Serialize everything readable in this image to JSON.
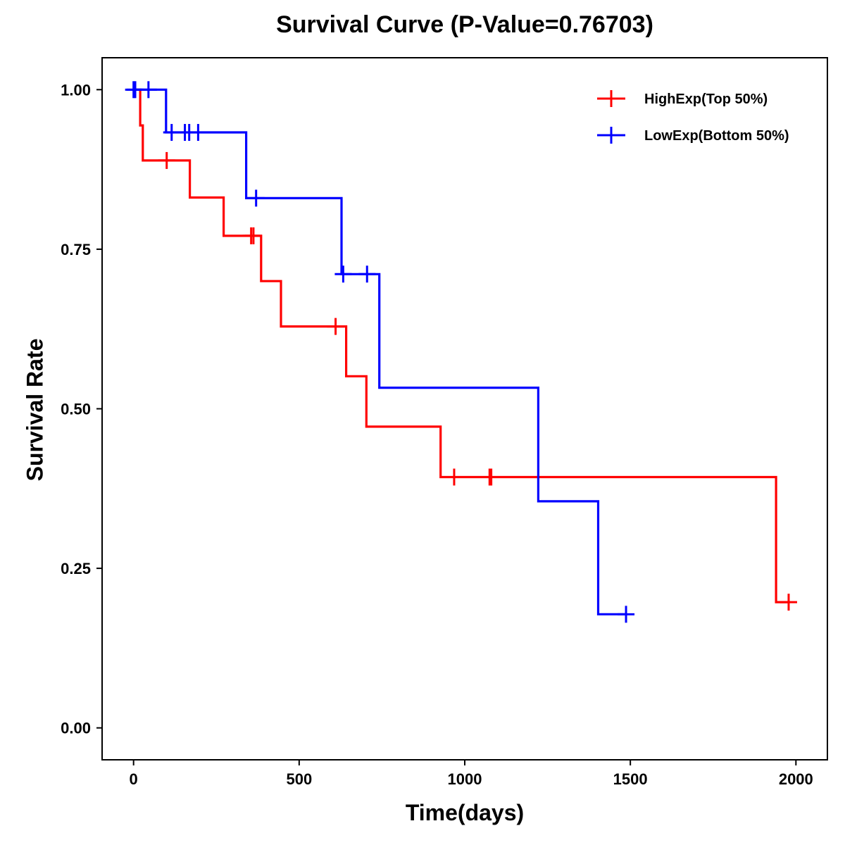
{
  "colors": {
    "high": "#ff0000",
    "low": "#0000ff",
    "axis": "#000000"
  },
  "chart_data": {
    "type": "line",
    "subtype": "kaplan-meier-step",
    "title": "Survival Curve (P-Value=0.76703)",
    "xlabel": "Time(days)",
    "ylabel": "Survival Rate",
    "xlim": [
      -95,
      2095
    ],
    "ylim": [
      -0.05,
      1.05
    ],
    "xticks": [
      0,
      500,
      1000,
      1500,
      2000
    ],
    "xtick_labels": [
      "0",
      "500",
      "1000",
      "1500",
      "2000"
    ],
    "yticks": [
      0,
      0.25,
      0.5,
      0.75,
      1.0
    ],
    "ytick_labels": [
      "0.00",
      "0.25",
      "0.50",
      "0.75",
      "1.00"
    ],
    "grid": false,
    "legend_position": "top-right",
    "series": [
      {
        "name": "HighExp(Top 50%)",
        "color": "#ff0000",
        "steps": [
          [
            0,
            1.0
          ],
          [
            20,
            0.944
          ],
          [
            28,
            0.889
          ],
          [
            170,
            0.831
          ],
          [
            272,
            0.771
          ],
          [
            385,
            0.7
          ],
          [
            445,
            0.629
          ],
          [
            642,
            0.551
          ],
          [
            703,
            0.472
          ],
          [
            927,
            0.393
          ],
          [
            1940,
            0.197
          ],
          [
            1980,
            0.197
          ]
        ],
        "censored": [
          [
            100,
            0.889
          ],
          [
            355,
            0.771
          ],
          [
            362,
            0.771
          ],
          [
            610,
            0.629
          ],
          [
            968,
            0.393
          ],
          [
            1075,
            0.393
          ],
          [
            1080,
            0.393
          ],
          [
            1978,
            0.197
          ]
        ]
      },
      {
        "name": "LowExp(Bottom 50%)",
        "color": "#0000ff",
        "steps": [
          [
            0,
            1.0
          ],
          [
            98,
            0.933
          ],
          [
            340,
            0.83
          ],
          [
            628,
            0.711
          ],
          [
            742,
            0.533
          ],
          [
            1222,
            0.355
          ],
          [
            1403,
            0.178
          ],
          [
            1490,
            0.178
          ]
        ],
        "censored": [
          [
            0,
            1.0
          ],
          [
            5,
            1.0
          ],
          [
            45,
            1.0
          ],
          [
            115,
            0.933
          ],
          [
            155,
            0.933
          ],
          [
            168,
            0.933
          ],
          [
            195,
            0.933
          ],
          [
            370,
            0.83
          ],
          [
            633,
            0.711
          ],
          [
            705,
            0.711
          ],
          [
            1487,
            0.178
          ]
        ]
      }
    ]
  }
}
